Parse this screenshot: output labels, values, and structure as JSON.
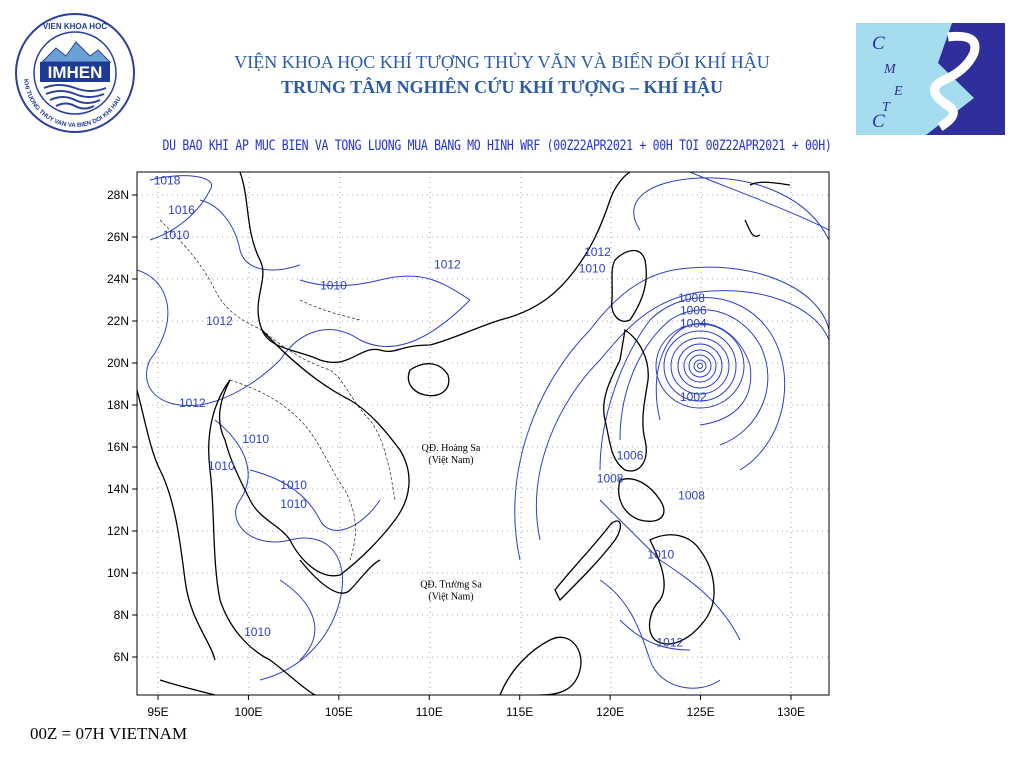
{
  "header": {
    "institute_name": "VIỆN KHOA HỌC KHÍ TƯỢNG THỦY VĂN VÀ BIẾN ĐỔI KHÍ HẬU",
    "center_name": "TRUNG TÂM NGHIÊN CỨU KHÍ TƯỢNG – KHÍ HẬU",
    "left_logo": {
      "top_text": "VIEN KHOA HOC",
      "main_text": "IMHEN",
      "ring_text": "KHI TUONG THUY VAN VA BIEN DOI KHI HAU"
    },
    "right_logo": {
      "letters": [
        "C",
        "M",
        "E",
        "T",
        "C"
      ]
    }
  },
  "forecast_title": "DU BAO KHI AP MUC BIEN VA TONG LUONG MUA BANG MO HINH WRF (00Z22APR2021 + 00H TOI 00Z22APR2021 + 00H)",
  "footer_note": "00Z = 07H VIETNAM",
  "map": {
    "lon_labels": [
      "95E",
      "100E",
      "105E",
      "110E",
      "115E",
      "120E",
      "125E",
      "130E"
    ],
    "lat_labels": [
      "28N",
      "26N",
      "24N",
      "22N",
      "20N",
      "18N",
      "16N",
      "14N",
      "12N",
      "10N",
      "8N",
      "6N"
    ],
    "colors": {
      "isobar": "#2c3fc7",
      "coast": "#000000",
      "grid": "#888888"
    },
    "isobar_labels": [
      {
        "text": "1018",
        "lon": 95.5,
        "lat": 28.5
      },
      {
        "text": "1016",
        "lon": 96.3,
        "lat": 27.1
      },
      {
        "text": "1010",
        "lon": 96.0,
        "lat": 25.9
      },
      {
        "text": "1012",
        "lon": 111.0,
        "lat": 24.5
      },
      {
        "text": "1010",
        "lon": 104.7,
        "lat": 23.5
      },
      {
        "text": "1012",
        "lon": 98.4,
        "lat": 21.8
      },
      {
        "text": "1012",
        "lon": 96.9,
        "lat": 17.9
      },
      {
        "text": "1010",
        "lon": 100.4,
        "lat": 16.2
      },
      {
        "text": "1010",
        "lon": 98.5,
        "lat": 14.9
      },
      {
        "text": "1010",
        "lon": 102.5,
        "lat": 14.0
      },
      {
        "text": "1010",
        "lon": 102.5,
        "lat": 13.1
      },
      {
        "text": "1010",
        "lon": 100.5,
        "lat": 7.0
      },
      {
        "text": "1012",
        "lon": 119.3,
        "lat": 25.1
      },
      {
        "text": "1010",
        "lon": 119.0,
        "lat": 24.3
      },
      {
        "text": "1008",
        "lon": 124.5,
        "lat": 22.9
      },
      {
        "text": "1006",
        "lon": 124.6,
        "lat": 22.3
      },
      {
        "text": "1004",
        "lon": 124.6,
        "lat": 21.7
      },
      {
        "text": "1002",
        "lon": 124.6,
        "lat": 18.2
      },
      {
        "text": "1006",
        "lon": 121.1,
        "lat": 15.4
      },
      {
        "text": "1008",
        "lon": 120.0,
        "lat": 14.3
      },
      {
        "text": "1008",
        "lon": 124.5,
        "lat": 13.5
      },
      {
        "text": "1010",
        "lon": 122.8,
        "lat": 10.7
      },
      {
        "text": "1012",
        "lon": 123.3,
        "lat": 6.5
      }
    ],
    "island_labels": [
      {
        "line1": "QĐ. Hoàng Sa",
        "line2": "(Việt Nam)",
        "lon": 111.2,
        "lat": 15.8
      },
      {
        "line1": "QĐ. Trường Sa",
        "line2": "(Việt Nam)",
        "lon": 111.2,
        "lat": 9.3
      }
    ]
  }
}
